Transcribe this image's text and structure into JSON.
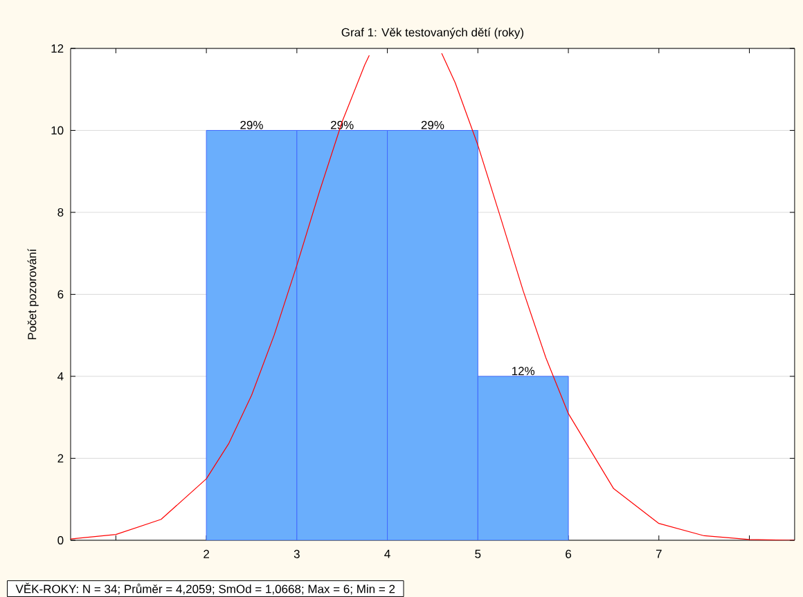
{
  "chart_data": {
    "type": "histogram",
    "title": "Graf 1: Věk testovaných dětí (roky)",
    "ylabel": "Počet pozorování",
    "annotations": [
      "VĚK-ROKY:   N = 34; Průměr = 4,2059; SmOd = 1,0668; Max = 6; Min = 2",
      {
        "text": "29%",
        "x": 2.5,
        "y": 10
      },
      {
        "text": "29%",
        "x": 3.5,
        "y": 10
      },
      {
        "text": "29%",
        "x": 4.5,
        "y": 10
      },
      {
        "text": "12%",
        "x": 5.5,
        "y": 4
      }
    ],
    "bins": [
      2,
      3,
      4,
      5,
      6
    ],
    "series": [
      {
        "color": "#6aaefc",
        "values": [
          10,
          10,
          10,
          4
        ]
      },
      {
        "type": "line",
        "color": "#ff0000",
        "x": [
          0.5,
          1,
          1.5,
          2,
          2.25,
          2.5,
          2.75,
          3,
          3.25,
          3.5,
          3.75,
          3.8,
          3.9,
          4.6,
          4.75,
          5,
          5.25,
          5.5,
          5.75,
          6,
          6.5,
          7,
          7.5,
          8,
          8.5
        ],
        "values": [
          0.03,
          0.14,
          0.51,
          1.5,
          2.37,
          3.54,
          5.01,
          6.71,
          8.51,
          10.21,
          11.6,
          11.83,
          null,
          11.88,
          11.16,
          9.64,
          7.88,
          6.09,
          4.46,
          3.09,
          1.26,
          0.41,
          0.11,
          0.02,
          0.0
        ]
      }
    ],
    "xlim": [
      0.5,
      8.5
    ],
    "ylim": [
      0,
      12
    ],
    "xticks": [
      {
        "value": 1,
        "label": null
      },
      2,
      3,
      4,
      5,
      6,
      7,
      {
        "value": 8,
        "label": null
      }
    ],
    "yticks": [
      0,
      2,
      4,
      6,
      8,
      10,
      12
    ],
    "grid": "y"
  }
}
